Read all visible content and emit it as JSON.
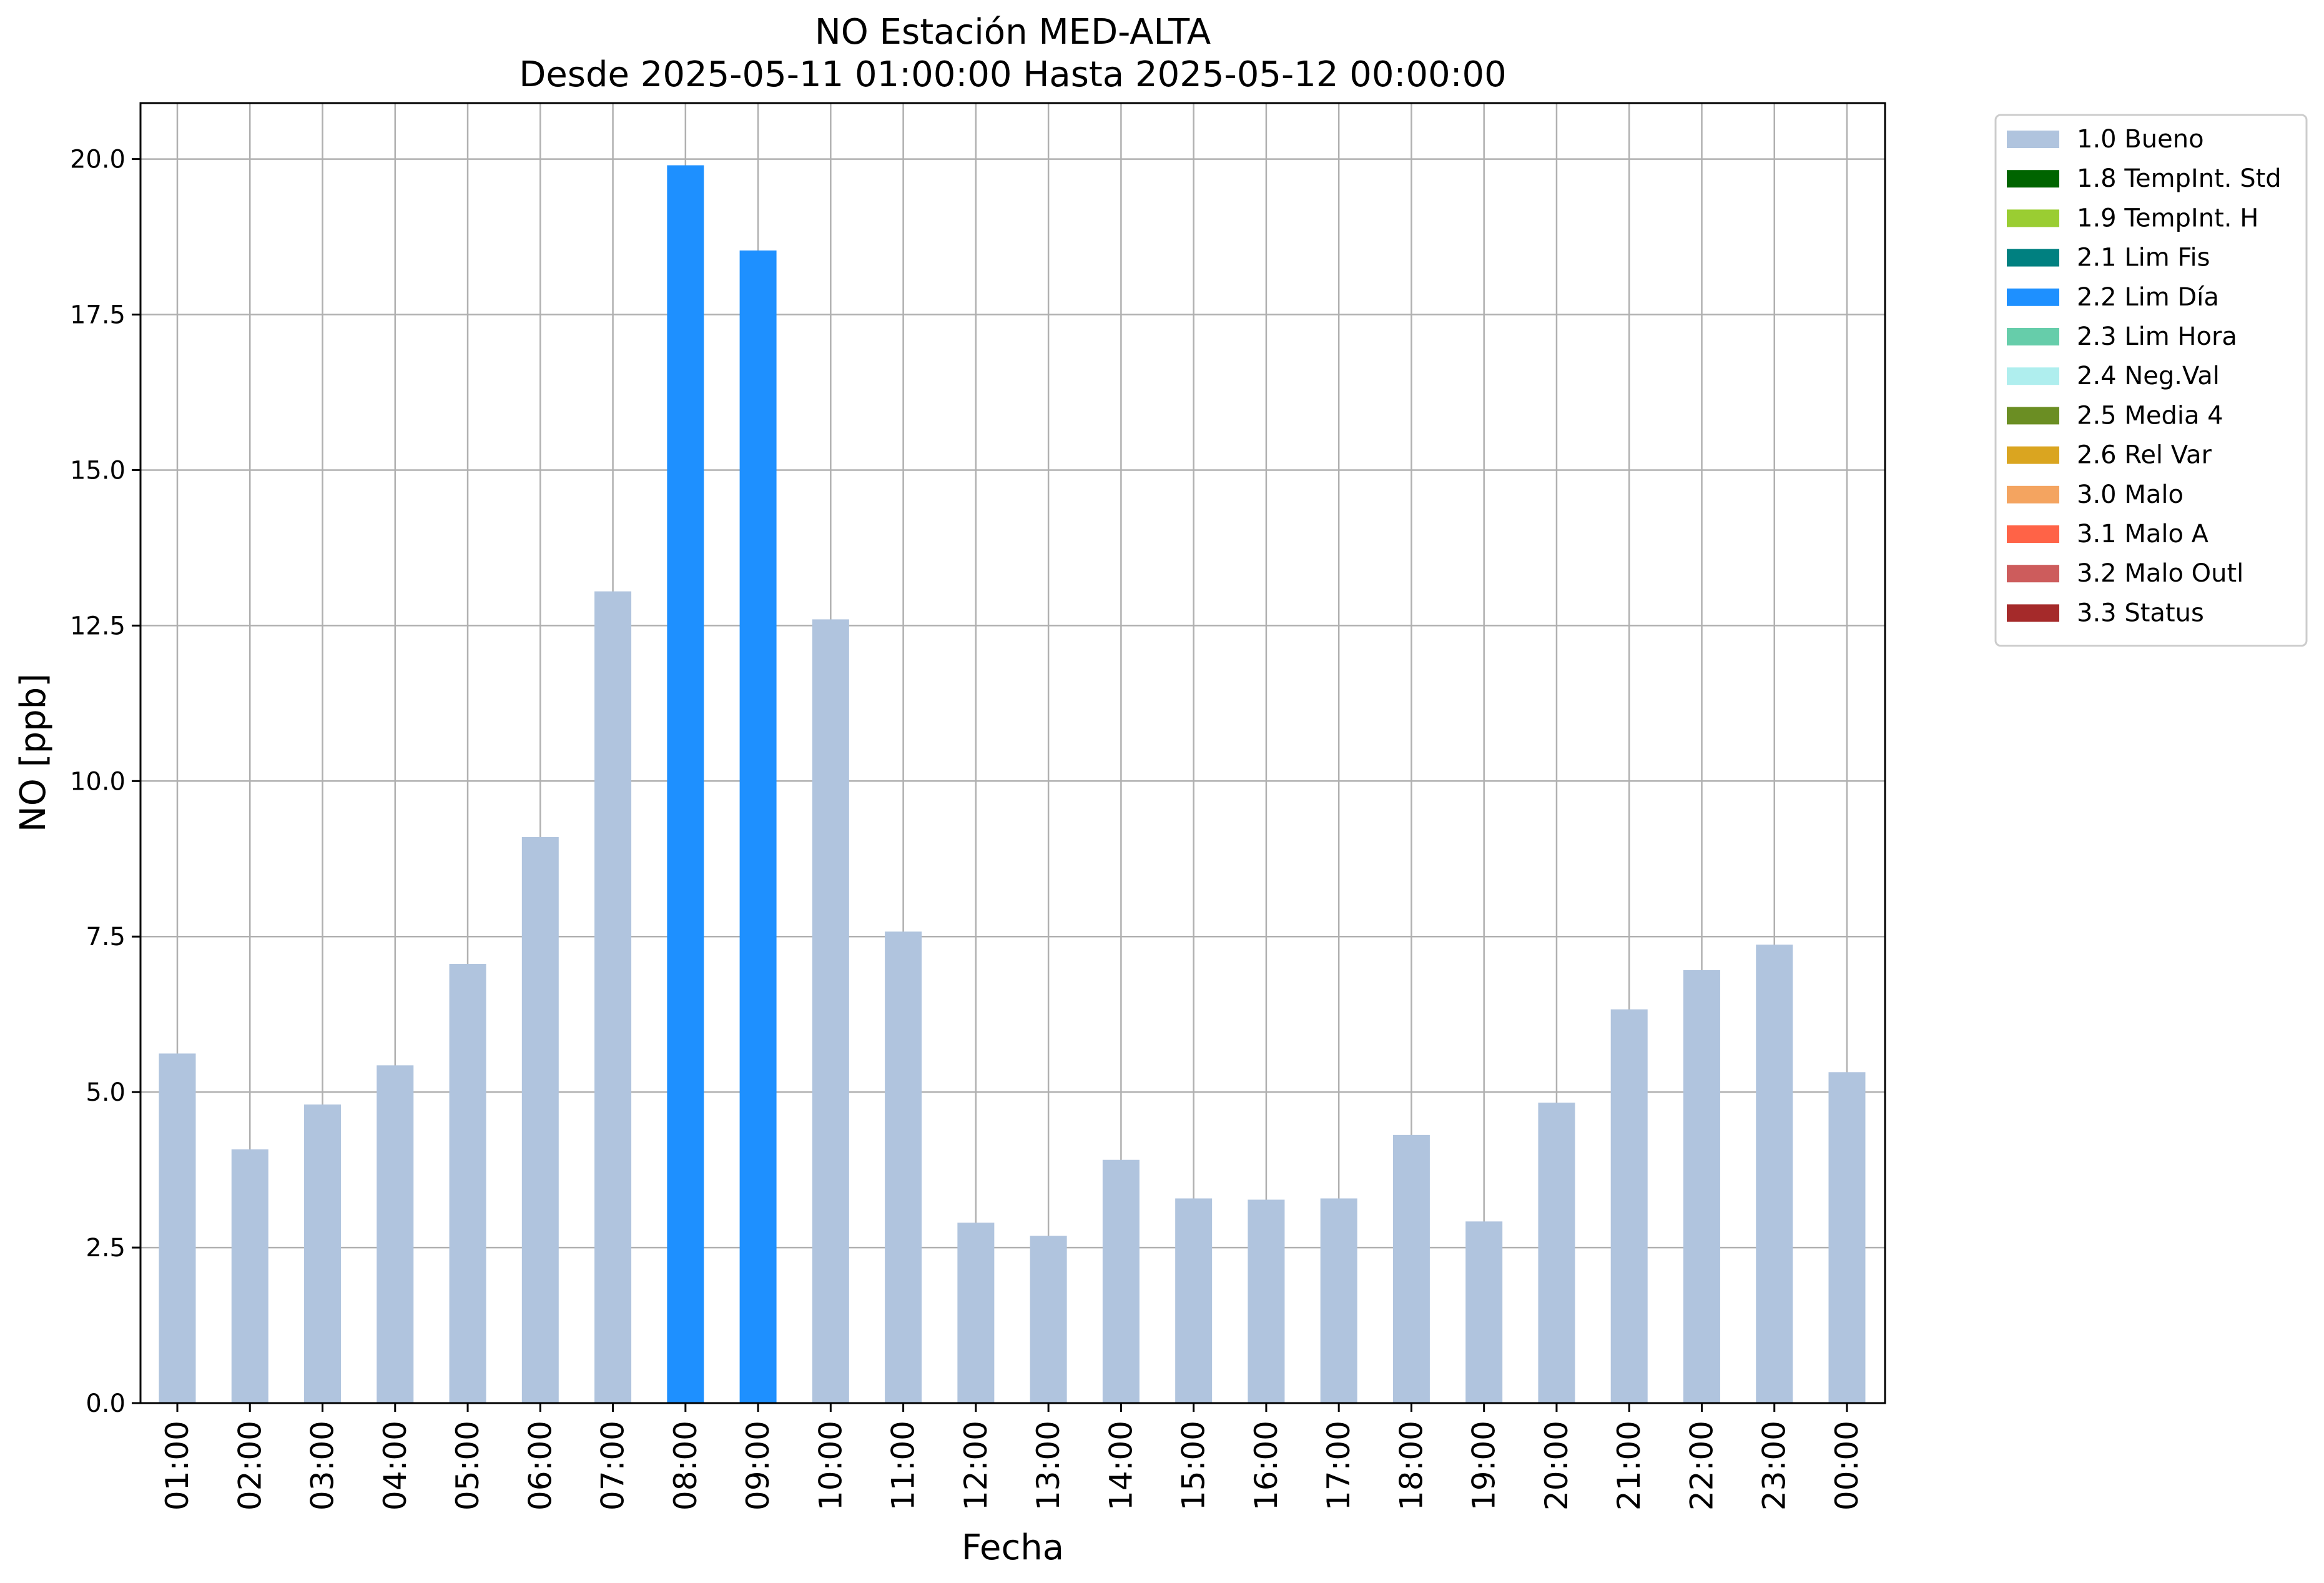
{
  "chart_data": {
    "type": "bar",
    "title": "NO Estación MED-ALTA",
    "subtitle": "Desde 2025-05-11 01:00:00 Hasta 2025-05-12 00:00:00",
    "xlabel": "Fecha",
    "ylabel": "NO [ppb]",
    "ylim": [
      0,
      20.9
    ],
    "yticks": [
      "0.0",
      "2.5",
      "5.0",
      "7.5",
      "10.0",
      "12.5",
      "15.0",
      "17.5",
      "20.0"
    ],
    "grid": true,
    "legend_position": "outside-top-right",
    "categories": [
      "01:00",
      "02:00",
      "03:00",
      "04:00",
      "05:00",
      "06:00",
      "07:00",
      "08:00",
      "09:00",
      "10:00",
      "11:00",
      "12:00",
      "13:00",
      "14:00",
      "15:00",
      "16:00",
      "17:00",
      "18:00",
      "19:00",
      "20:00",
      "21:00",
      "22:00",
      "23:00",
      "00:00"
    ],
    "values": [
      5.62,
      4.08,
      4.8,
      5.43,
      7.06,
      9.1,
      13.05,
      19.9,
      18.53,
      12.6,
      7.58,
      2.9,
      2.69,
      3.91,
      3.29,
      3.27,
      3.29,
      4.31,
      2.92,
      4.83,
      6.33,
      6.96,
      7.37,
      5.32
    ],
    "flags": [
      "1.0 Bueno",
      "1.0 Bueno",
      "1.0 Bueno",
      "1.0 Bueno",
      "1.0 Bueno",
      "1.0 Bueno",
      "1.0 Bueno",
      "2.2 Lim Día",
      "2.2 Lim Día",
      "1.0 Bueno",
      "1.0 Bueno",
      "1.0 Bueno",
      "1.0 Bueno",
      "1.0 Bueno",
      "1.0 Bueno",
      "1.0 Bueno",
      "1.0 Bueno",
      "1.0 Bueno",
      "1.0 Bueno",
      "1.0 Bueno",
      "1.0 Bueno",
      "1.0 Bueno",
      "1.0 Bueno",
      "1.0 Bueno"
    ],
    "legend": [
      {
        "label": "1.0 Bueno",
        "color": "#b0c4de"
      },
      {
        "label": "1.8 TempInt. Std",
        "color": "#006400"
      },
      {
        "label": "1.9 TempInt. H",
        "color": "#9acd32"
      },
      {
        "label": "2.1 Lim Fis",
        "color": "#008080"
      },
      {
        "label": "2.2 Lim Día",
        "color": "#1e90ff"
      },
      {
        "label": "2.3 Lim Hora",
        "color": "#66cdaa"
      },
      {
        "label": "2.4 Neg.Val",
        "color": "#afeeee"
      },
      {
        "label": "2.5 Media 4",
        "color": "#6b8e23"
      },
      {
        "label": "2.6 Rel Var",
        "color": "#daa520"
      },
      {
        "label": "3.0 Malo",
        "color": "#f4a460"
      },
      {
        "label": "3.1 Malo A",
        "color": "#ff6347"
      },
      {
        "label": "3.2 Malo Outl",
        "color": "#cd5c5c"
      },
      {
        "label": "3.3 Status",
        "color": "#a52a2a"
      }
    ]
  }
}
